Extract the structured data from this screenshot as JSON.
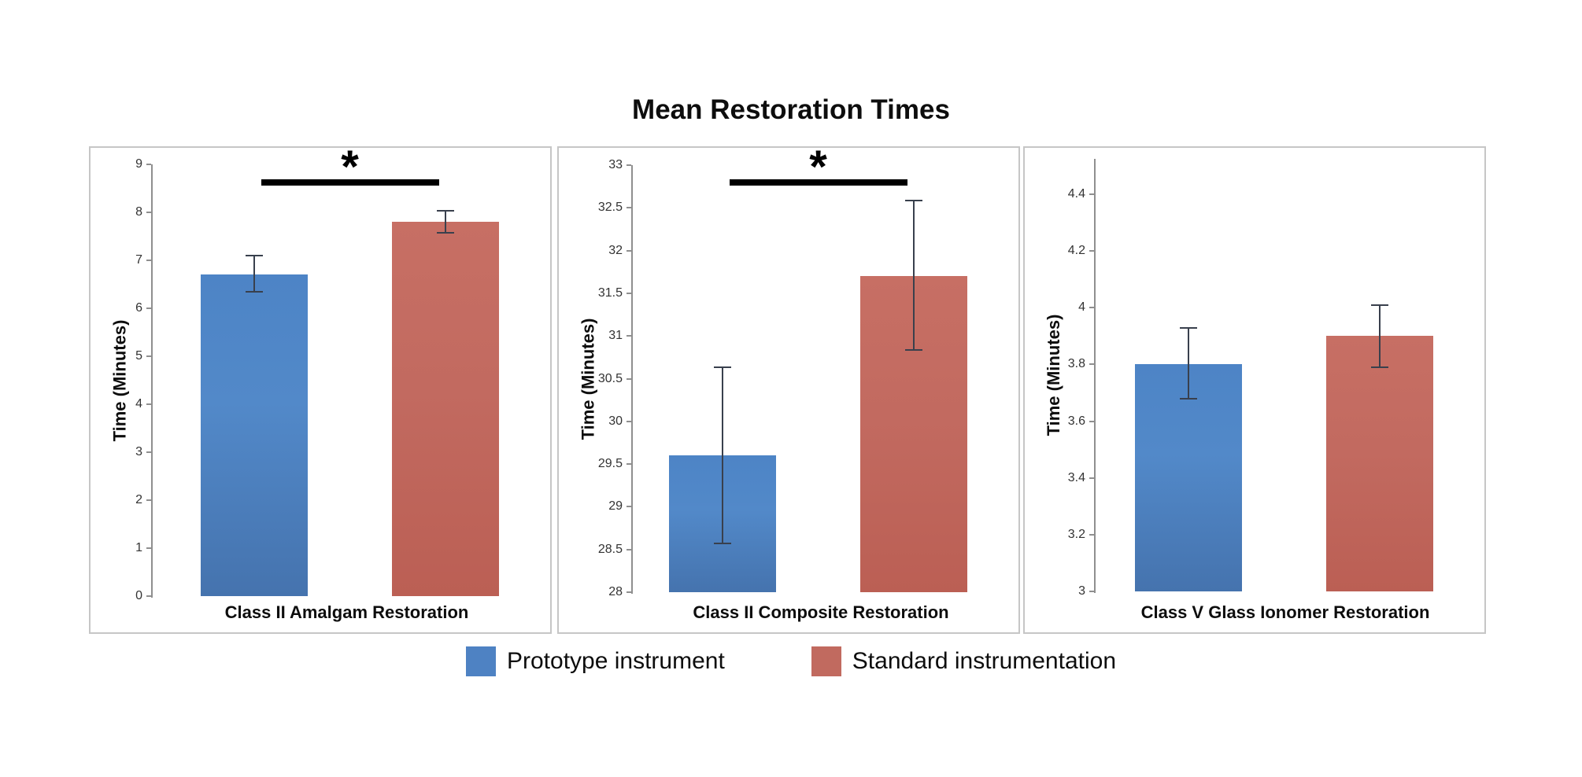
{
  "title": "Mean Restoration Times",
  "legend": {
    "position": "bottom",
    "items": [
      {
        "label": "Prototype instrument",
        "color": "#4e82c3"
      },
      {
        "label": "Standard instrumentation",
        "color": "#c16a5f"
      }
    ]
  },
  "chart_data": [
    {
      "type": "bar",
      "category": "Class II Amalgam Restoration",
      "ylabel": "Time (Minutes)",
      "ylim": [
        0,
        9
      ],
      "grid": false,
      "ytick_values": [
        0,
        1,
        2,
        3,
        4,
        5,
        6,
        7,
        8,
        9
      ],
      "ytick_labels": [
        "0",
        "1",
        "2",
        "3",
        "4",
        "5",
        "6",
        "7",
        "8",
        "9"
      ],
      "series": [
        {
          "name": "Prototype instrument",
          "value": 6.7,
          "err_low": 6.35,
          "err_high": 7.1
        },
        {
          "name": "Standard instrumentation",
          "value": 7.8,
          "err_low": 7.57,
          "err_high": 8.03
        }
      ],
      "sig_marker": "*"
    },
    {
      "type": "bar",
      "category": "Class II Composite Restoration",
      "ylabel": "Time (Minutes)",
      "ylim": [
        28,
        33
      ],
      "grid": false,
      "ytick_values": [
        28,
        28.5,
        29,
        29.5,
        30,
        30.5,
        31,
        31.5,
        32,
        32.5,
        33
      ],
      "ytick_labels": [
        "28",
        "28.5",
        "29",
        "29.5",
        "30",
        "30.5",
        "31",
        "31.5",
        "32",
        "32.5",
        "33"
      ],
      "series": [
        {
          "name": "Prototype instrument",
          "value": 29.6,
          "err_low": 28.57,
          "err_high": 30.63
        },
        {
          "name": "Standard instrumentation",
          "value": 31.7,
          "err_low": 30.84,
          "err_high": 32.59
        }
      ],
      "sig_marker": "*"
    },
    {
      "type": "bar",
      "category": "Class V Glass Ionomer Restoration",
      "ylabel": "Time (Minutes)",
      "ylim": [
        3,
        4.4
      ],
      "grid": false,
      "ytick_values": [
        3,
        3.2,
        3.4,
        3.6,
        3.8,
        4,
        4.2,
        4.4
      ],
      "ytick_labels": [
        "3",
        "3.2",
        "3.4",
        "3.6",
        "3.8",
        "4",
        "4.2",
        "4.4"
      ],
      "series": [
        {
          "name": "Prototype instrument",
          "value": 3.8,
          "err_low": 3.68,
          "err_high": 3.93
        },
        {
          "name": "Standard instrumentation",
          "value": 3.9,
          "err_low": 3.79,
          "err_high": 4.01
        }
      ],
      "sig_marker": ""
    }
  ]
}
